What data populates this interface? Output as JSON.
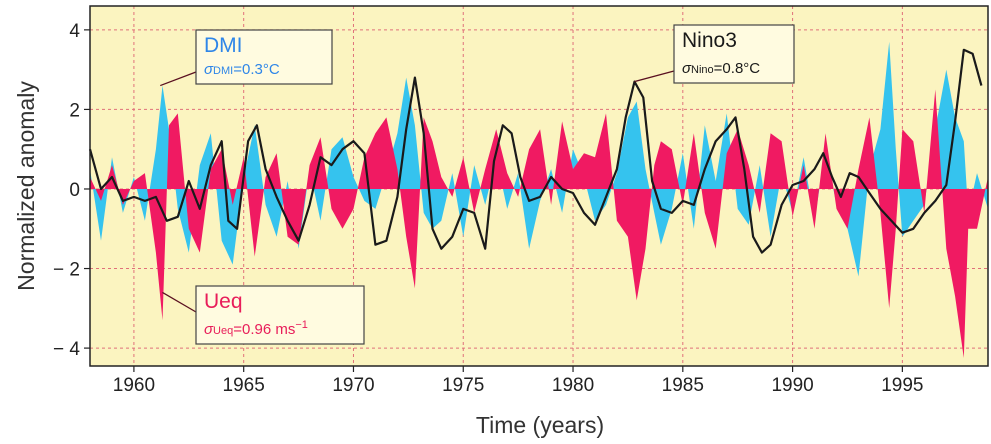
{
  "colors": {
    "background": "#fbf4c0",
    "grid": "#e0707a",
    "dmi": "#35c3ee",
    "ueq": "#f01a62",
    "nino3": "#1a1a1a",
    "dmi_label": "#2f86e8",
    "ueq_label": "#e81d5a",
    "nino_label": "#1a1a1a"
  },
  "chart_data": {
    "type": "area",
    "xlabel": "Time (years)",
    "ylabel": "Normalized anomaly",
    "xlim": [
      1958,
      1998.9
    ],
    "ylim": [
      -4.45,
      4.6
    ],
    "xticks": [
      1960,
      1965,
      1970,
      1975,
      1980,
      1985,
      1990,
      1995
    ],
    "yticks": [
      4,
      2,
      0,
      -2,
      -4
    ],
    "ytick_labels": [
      "4",
      "2",
      "0",
      "− 2",
      "− 4"
    ],
    "grid": true,
    "annotations": {
      "dmi": {
        "name": "DMI",
        "sigma_prefix": "σ",
        "sigma_sub": "DMI",
        "sigma_value": "=0.3°C",
        "points_to": [
          1961.2,
          2.6
        ]
      },
      "nino3": {
        "name": "Nino3",
        "sigma_prefix": "σ",
        "sigma_sub": "Nino",
        "sigma_value": "=0.8°C",
        "points_to": [
          1982.8,
          2.7
        ]
      },
      "ueq": {
        "name": "Ueq",
        "sigma_prefix": "σ",
        "sigma_sub": "Ueq",
        "sigma_value": "=0.96 ms",
        "sigma_sup": "−1",
        "points_to": [
          1961.3,
          -2.6
        ]
      }
    },
    "series": [
      {
        "name": "DMI",
        "style": "filled area",
        "x": [
          1958,
          1958.5,
          1959,
          1959.5,
          1960,
          1960.5,
          1961,
          1961.3,
          1961.6,
          1962,
          1962.5,
          1963,
          1963.5,
          1964,
          1964.5,
          1965,
          1965.5,
          1966,
          1966.5,
          1967,
          1967.5,
          1968,
          1968.5,
          1969,
          1969.5,
          1970,
          1970.5,
          1971,
          1971.5,
          1972,
          1972.4,
          1972.8,
          1973.2,
          1973.6,
          1974,
          1974.5,
          1975,
          1975.5,
          1976,
          1976.5,
          1977,
          1977.5,
          1978,
          1978.5,
          1979,
          1979.5,
          1980,
          1980.5,
          1981,
          1981.5,
          1982,
          1982.5,
          1982.9,
          1983.3,
          1983.7,
          1984,
          1984.5,
          1985,
          1985.5,
          1986,
          1986.5,
          1987,
          1987.5,
          1988,
          1988.5,
          1989,
          1989.5,
          1990,
          1990.5,
          1991,
          1991.5,
          1992,
          1992.5,
          1993,
          1993.5,
          1994,
          1994.4,
          1994.7,
          1995,
          1995.5,
          1996,
          1996.5,
          1997,
          1997.4,
          1997.8,
          1998,
          1998.4,
          1998.9
        ],
        "values": [
          0.5,
          -1.3,
          0.8,
          -0.6,
          0.3,
          -0.8,
          1.0,
          2.6,
          1.5,
          -0.5,
          -1.6,
          0.6,
          1.4,
          -1.3,
          -1.9,
          0.3,
          1.6,
          -0.4,
          -1.2,
          0.2,
          -1.5,
          0.5,
          -0.8,
          1.0,
          1.3,
          0.3,
          -0.3,
          -0.5,
          0.4,
          1.4,
          2.8,
          1.6,
          -0.6,
          -1.0,
          -0.8,
          0.4,
          -1.2,
          0.6,
          -0.4,
          0.8,
          -0.5,
          0.4,
          -1.5,
          -0.3,
          0.5,
          -0.6,
          1.0,
          0.3,
          -0.8,
          -0.4,
          0.4,
          1.8,
          2.2,
          0.5,
          -0.6,
          -1.4,
          -0.5,
          0.9,
          -1.0,
          1.6,
          0.2,
          1.9,
          -0.5,
          -0.9,
          0.6,
          -1.2,
          0.4,
          -0.6,
          0.8,
          -0.8,
          1.0,
          -0.4,
          -1.0,
          -2.2,
          0.5,
          1.5,
          3.7,
          1.0,
          -1.2,
          -0.8,
          -0.4,
          1.5,
          3.0,
          1.8,
          1.2,
          -0.6,
          0.4,
          -0.5
        ]
      },
      {
        "name": "Ueq",
        "style": "filled area",
        "x": [
          1958,
          1958.5,
          1959,
          1959.5,
          1960,
          1960.5,
          1961,
          1961.3,
          1961.6,
          1962,
          1962.5,
          1963,
          1963.5,
          1964,
          1964.5,
          1965,
          1965.5,
          1966,
          1966.5,
          1967,
          1967.5,
          1968,
          1968.5,
          1969,
          1969.5,
          1970,
          1970.5,
          1971,
          1971.5,
          1972,
          1972.4,
          1972.8,
          1973.2,
          1973.6,
          1974,
          1974.5,
          1975,
          1975.5,
          1976,
          1976.5,
          1977,
          1977.5,
          1978,
          1978.5,
          1979,
          1979.5,
          1980,
          1980.5,
          1981,
          1981.5,
          1982,
          1982.5,
          1982.9,
          1983.3,
          1983.7,
          1984,
          1984.5,
          1985,
          1985.5,
          1986,
          1986.5,
          1987,
          1987.5,
          1988,
          1988.5,
          1989,
          1989.5,
          1990,
          1990.5,
          1991,
          1991.5,
          1992,
          1992.5,
          1993,
          1993.5,
          1994,
          1994.4,
          1994.7,
          1995,
          1995.5,
          1996,
          1996.5,
          1997,
          1997.4,
          1997.8,
          1998,
          1998.4,
          1998.9
        ],
        "values": [
          0.3,
          -0.3,
          0.6,
          -0.4,
          0.2,
          0.4,
          -1.6,
          -3.3,
          1.6,
          1.9,
          -1.0,
          -1.6,
          0.5,
          1.0,
          -0.4,
          0.8,
          -1.7,
          0.3,
          0.9,
          -1.2,
          -1.4,
          0.6,
          1.3,
          -0.5,
          -1.0,
          -0.5,
          0.8,
          1.4,
          1.8,
          0.5,
          -1.2,
          -2.5,
          1.8,
          1.2,
          0.3,
          -0.2,
          0.8,
          -0.6,
          0.5,
          1.5,
          0.4,
          -0.2,
          1.0,
          1.5,
          -0.4,
          1.7,
          0.5,
          0.9,
          0.8,
          1.9,
          -0.8,
          -1.2,
          -2.8,
          -1.5,
          0.6,
          1.2,
          1.0,
          -0.4,
          1.4,
          -0.6,
          -1.5,
          0.9,
          1.5,
          0.6,
          -0.6,
          1.4,
          1.2,
          -0.7,
          0.6,
          -1.0,
          1.4,
          -0.5,
          -1.0,
          0.5,
          1.8,
          -0.6,
          -3.0,
          -1.0,
          1.5,
          1.2,
          -0.6,
          2.5,
          -1.5,
          -2.7,
          -4.25,
          -1.0,
          -1.0,
          0.3
        ]
      },
      {
        "name": "Nino3",
        "style": "line",
        "x": [
          1958,
          1958.5,
          1959,
          1959.5,
          1960,
          1960.5,
          1961,
          1961.5,
          1962,
          1962.5,
          1963,
          1963.5,
          1964,
          1964.3,
          1964.7,
          1965.2,
          1965.6,
          1966,
          1966.5,
          1967,
          1967.5,
          1968,
          1968.5,
          1969,
          1969.5,
          1970,
          1970.5,
          1971,
          1971.5,
          1972,
          1972.4,
          1972.8,
          1973.2,
          1973.6,
          1974,
          1974.5,
          1975,
          1975.5,
          1976,
          1976.4,
          1976.8,
          1977.2,
          1977.6,
          1978,
          1978.5,
          1979,
          1979.5,
          1980,
          1980.5,
          1981,
          1981.5,
          1982,
          1982.4,
          1982.8,
          1983.2,
          1983.6,
          1984,
          1984.5,
          1985,
          1985.5,
          1986,
          1986.5,
          1987,
          1987.4,
          1987.8,
          1988.2,
          1988.6,
          1989,
          1989.5,
          1990,
          1990.5,
          1991,
          1991.4,
          1991.8,
          1992.2,
          1992.6,
          1993,
          1993.5,
          1994,
          1994.5,
          1995,
          1995.5,
          1996,
          1996.5,
          1997,
          1997.4,
          1997.8,
          1998.2,
          1998.6
        ],
        "values": [
          1.0,
          0.0,
          0.3,
          -0.3,
          -0.2,
          -0.3,
          -0.2,
          -0.8,
          -0.7,
          0.2,
          -0.5,
          0.6,
          1.2,
          -0.8,
          -1.0,
          1.2,
          1.6,
          0.5,
          -0.2,
          -0.8,
          -1.3,
          -0.4,
          0.8,
          0.6,
          1.0,
          1.2,
          0.9,
          -1.4,
          -1.3,
          -0.2,
          1.5,
          2.8,
          1.4,
          -1.0,
          -1.5,
          -1.2,
          -0.5,
          -0.6,
          -1.5,
          0.7,
          1.6,
          1.4,
          0.3,
          -0.3,
          -0.2,
          0.3,
          0.0,
          -0.1,
          -0.6,
          -0.9,
          -0.2,
          0.5,
          1.8,
          2.7,
          2.3,
          0.2,
          -0.5,
          -0.6,
          -0.3,
          -0.4,
          0.5,
          1.2,
          1.5,
          1.8,
          0.5,
          -1.2,
          -1.6,
          -1.4,
          -0.4,
          0.1,
          0.2,
          0.5,
          0.9,
          0.3,
          -0.2,
          0.4,
          0.3,
          -0.1,
          -0.5,
          -0.8,
          -1.1,
          -1.0,
          -0.6,
          -0.3,
          0.1,
          1.7,
          3.5,
          3.4,
          2.6
        ]
      }
    ]
  }
}
